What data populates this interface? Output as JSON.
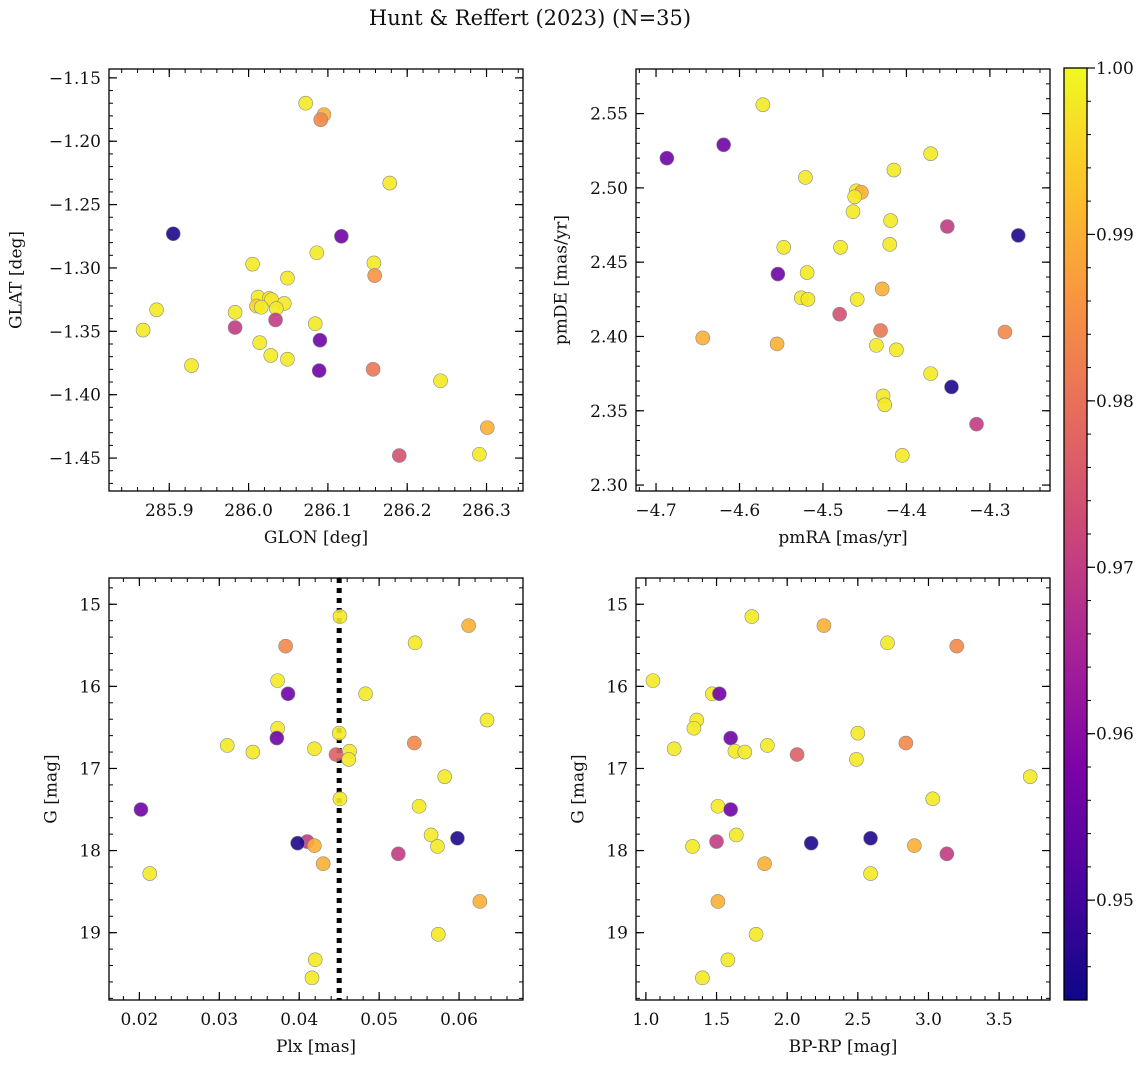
{
  "figure": {
    "title": "Hunt & Reffert (2023) (N=35)"
  },
  "colorbar": {
    "cmap": "plasma",
    "vmin": 0.944,
    "vmax": 1.0,
    "ticks": [
      0.95,
      0.96,
      0.97,
      0.98,
      0.99,
      1.0
    ],
    "tick_labels": [
      "0.95",
      "0.96",
      "0.97",
      "0.98",
      "0.99",
      "1.00"
    ]
  },
  "chart_data": [
    {
      "type": "scatter",
      "id": "glon-glat",
      "xlabel": "GLON [deg]",
      "ylabel": "GLAT [deg]",
      "xlim": [
        285.824,
        286.346
      ],
      "ylim": [
        -1.476,
        -1.143
      ],
      "y_inverted": false,
      "xticks": [
        285.9,
        286.0,
        286.1,
        286.2,
        286.3
      ],
      "xtick_labels": [
        "285.9",
        "286.0",
        "286.1",
        "286.2",
        "286.3"
      ],
      "yticks": [
        -1.45,
        -1.4,
        -1.35,
        -1.3,
        -1.25,
        -1.2,
        -1.15
      ],
      "ytick_labels": [
        "−1.45",
        "−1.40",
        "−1.35",
        "−1.30",
        "−1.25",
        "−1.20",
        "−1.15"
      ],
      "points": [
        {
          "x": 286.072,
          "y": -1.17,
          "c": 0.998
        },
        {
          "x": 286.095,
          "y": -1.179,
          "c": 0.99
        },
        {
          "x": 286.091,
          "y": -1.183,
          "c": 0.984
        },
        {
          "x": 286.178,
          "y": -1.233,
          "c": 0.998
        },
        {
          "x": 285.905,
          "y": -1.273,
          "c": 0.946
        },
        {
          "x": 286.117,
          "y": -1.275,
          "c": 0.956
        },
        {
          "x": 286.086,
          "y": -1.288,
          "c": 0.998
        },
        {
          "x": 286.005,
          "y": -1.297,
          "c": 0.998
        },
        {
          "x": 286.158,
          "y": -1.296,
          "c": 0.998
        },
        {
          "x": 286.049,
          "y": -1.308,
          "c": 0.998
        },
        {
          "x": 286.159,
          "y": -1.306,
          "c": 0.986
        },
        {
          "x": 286.012,
          "y": -1.323,
          "c": 0.998
        },
        {
          "x": 286.026,
          "y": -1.324,
          "c": 0.997
        },
        {
          "x": 286.029,
          "y": -1.325,
          "c": 0.998
        },
        {
          "x": 286.045,
          "y": -1.328,
          "c": 0.998
        },
        {
          "x": 286.01,
          "y": -1.33,
          "c": 0.995
        },
        {
          "x": 286.016,
          "y": -1.331,
          "c": 0.998
        },
        {
          "x": 286.035,
          "y": -1.332,
          "c": 0.998
        },
        {
          "x": 285.884,
          "y": -1.333,
          "c": 0.998
        },
        {
          "x": 285.983,
          "y": -1.335,
          "c": 0.998
        },
        {
          "x": 286.034,
          "y": -1.341,
          "c": 0.97
        },
        {
          "x": 286.084,
          "y": -1.344,
          "c": 0.998
        },
        {
          "x": 285.983,
          "y": -1.347,
          "c": 0.97
        },
        {
          "x": 285.867,
          "y": -1.349,
          "c": 0.998
        },
        {
          "x": 286.09,
          "y": -1.357,
          "c": 0.956
        },
        {
          "x": 286.014,
          "y": -1.359,
          "c": 0.998
        },
        {
          "x": 286.028,
          "y": -1.369,
          "c": 0.998
        },
        {
          "x": 286.049,
          "y": -1.372,
          "c": 0.998
        },
        {
          "x": 285.928,
          "y": -1.377,
          "c": 0.998
        },
        {
          "x": 286.157,
          "y": -1.38,
          "c": 0.981
        },
        {
          "x": 286.089,
          "y": -1.381,
          "c": 0.956
        },
        {
          "x": 286.242,
          "y": -1.389,
          "c": 0.998
        },
        {
          "x": 286.301,
          "y": -1.426,
          "c": 0.99
        },
        {
          "x": 286.19,
          "y": -1.448,
          "c": 0.974
        },
        {
          "x": 286.291,
          "y": -1.447,
          "c": 0.998
        }
      ]
    },
    {
      "type": "scatter",
      "id": "pmra-pmde",
      "xlabel": "pmRA [mas/yr]",
      "ylabel": "pmDE [mas/yr]",
      "xlim": [
        -4.724,
        -4.228
      ],
      "ylim": [
        2.296,
        2.58
      ],
      "y_inverted": false,
      "xticks": [
        -4.7,
        -4.6,
        -4.5,
        -4.4,
        -4.3
      ],
      "xtick_labels": [
        "−4.7",
        "−4.6",
        "−4.5",
        "−4.4",
        "−4.3"
      ],
      "yticks": [
        2.3,
        2.35,
        2.4,
        2.45,
        2.5,
        2.55
      ],
      "ytick_labels": [
        "2.30",
        "2.35",
        "2.40",
        "2.45",
        "2.50",
        "2.55"
      ],
      "points": [
        {
          "x": -4.572,
          "y": 2.556,
          "c": 0.998
        },
        {
          "x": -4.687,
          "y": 2.52,
          "c": 0.956
        },
        {
          "x": -4.619,
          "y": 2.529,
          "c": 0.956
        },
        {
          "x": -4.371,
          "y": 2.523,
          "c": 0.998
        },
        {
          "x": -4.415,
          "y": 2.512,
          "c": 0.998
        },
        {
          "x": -4.521,
          "y": 2.507,
          "c": 0.998
        },
        {
          "x": -4.46,
          "y": 2.498,
          "c": 0.998
        },
        {
          "x": -4.454,
          "y": 2.497,
          "c": 0.99
        },
        {
          "x": -4.462,
          "y": 2.494,
          "c": 0.998
        },
        {
          "x": -4.464,
          "y": 2.484,
          "c": 0.998
        },
        {
          "x": -4.419,
          "y": 2.478,
          "c": 0.998
        },
        {
          "x": -4.351,
          "y": 2.474,
          "c": 0.97
        },
        {
          "x": -4.266,
          "y": 2.468,
          "c": 0.946
        },
        {
          "x": -4.42,
          "y": 2.462,
          "c": 0.998
        },
        {
          "x": -4.547,
          "y": 2.46,
          "c": 0.998
        },
        {
          "x": -4.479,
          "y": 2.46,
          "c": 0.998
        },
        {
          "x": -4.519,
          "y": 2.443,
          "c": 0.998
        },
        {
          "x": -4.554,
          "y": 2.442,
          "c": 0.956
        },
        {
          "x": -4.429,
          "y": 2.432,
          "c": 0.99
        },
        {
          "x": -4.526,
          "y": 2.426,
          "c": 0.998
        },
        {
          "x": -4.518,
          "y": 2.425,
          "c": 0.998
        },
        {
          "x": -4.459,
          "y": 2.425,
          "c": 0.998
        },
        {
          "x": -4.48,
          "y": 2.415,
          "c": 0.974
        },
        {
          "x": -4.431,
          "y": 2.404,
          "c": 0.981
        },
        {
          "x": -4.282,
          "y": 2.403,
          "c": 0.984
        },
        {
          "x": -4.644,
          "y": 2.399,
          "c": 0.99
        },
        {
          "x": -4.555,
          "y": 2.395,
          "c": 0.99
        },
        {
          "x": -4.436,
          "y": 2.394,
          "c": 0.998
        },
        {
          "x": -4.412,
          "y": 2.391,
          "c": 0.998
        },
        {
          "x": -4.371,
          "y": 2.375,
          "c": 0.998
        },
        {
          "x": -4.346,
          "y": 2.366,
          "c": 0.946
        },
        {
          "x": -4.428,
          "y": 2.36,
          "c": 0.998
        },
        {
          "x": -4.426,
          "y": 2.354,
          "c": 0.998
        },
        {
          "x": -4.316,
          "y": 2.341,
          "c": 0.97
        },
        {
          "x": -4.405,
          "y": 2.32,
          "c": 0.998
        }
      ]
    },
    {
      "type": "scatter",
      "id": "plx-g",
      "xlabel": "Plx [mas]",
      "ylabel": "G [mag]",
      "xlim": [
        0.0162,
        0.068
      ],
      "ylim": [
        19.82,
        14.68
      ],
      "y_inverted": true,
      "vline": {
        "x": 0.045,
        "style": "dotted"
      },
      "xticks": [
        0.02,
        0.03,
        0.04,
        0.05,
        0.06
      ],
      "xtick_labels": [
        "0.02",
        "0.03",
        "0.04",
        "0.05",
        "0.06"
      ],
      "yticks": [
        15,
        16,
        17,
        18,
        19
      ],
      "ytick_labels": [
        "15",
        "16",
        "17",
        "18",
        "19"
      ],
      "points": [
        {
          "x": 0.0451,
          "y": 15.15,
          "c": 0.998
        },
        {
          "x": 0.0612,
          "y": 15.26,
          "c": 0.99
        },
        {
          "x": 0.0545,
          "y": 15.47,
          "c": 0.998
        },
        {
          "x": 0.0383,
          "y": 15.51,
          "c": 0.984
        },
        {
          "x": 0.0373,
          "y": 15.93,
          "c": 0.998
        },
        {
          "x": 0.0386,
          "y": 16.09,
          "c": 0.956
        },
        {
          "x": 0.0483,
          "y": 16.09,
          "c": 0.998
        },
        {
          "x": 0.0635,
          "y": 16.41,
          "c": 0.998
        },
        {
          "x": 0.0373,
          "y": 16.51,
          "c": 0.998
        },
        {
          "x": 0.045,
          "y": 16.57,
          "c": 0.998
        },
        {
          "x": 0.0372,
          "y": 16.63,
          "c": 0.956
        },
        {
          "x": 0.0544,
          "y": 16.69,
          "c": 0.984
        },
        {
          "x": 0.031,
          "y": 16.72,
          "c": 0.998
        },
        {
          "x": 0.0419,
          "y": 16.76,
          "c": 0.998
        },
        {
          "x": 0.0342,
          "y": 16.8,
          "c": 0.998
        },
        {
          "x": 0.0463,
          "y": 16.79,
          "c": 0.998
        },
        {
          "x": 0.0446,
          "y": 16.83,
          "c": 0.977
        },
        {
          "x": 0.0462,
          "y": 16.89,
          "c": 0.998
        },
        {
          "x": 0.0582,
          "y": 17.1,
          "c": 0.998
        },
        {
          "x": 0.0451,
          "y": 17.37,
          "c": 0.998
        },
        {
          "x": 0.055,
          "y": 17.46,
          "c": 0.998
        },
        {
          "x": 0.0202,
          "y": 17.5,
          "c": 0.956
        },
        {
          "x": 0.0565,
          "y": 17.81,
          "c": 0.998
        },
        {
          "x": 0.0598,
          "y": 17.85,
          "c": 0.946
        },
        {
          "x": 0.041,
          "y": 17.89,
          "c": 0.97
        },
        {
          "x": 0.0398,
          "y": 17.91,
          "c": 0.946
        },
        {
          "x": 0.0419,
          "y": 17.94,
          "c": 0.99
        },
        {
          "x": 0.0573,
          "y": 17.95,
          "c": 0.998
        },
        {
          "x": 0.0524,
          "y": 18.04,
          "c": 0.97
        },
        {
          "x": 0.043,
          "y": 18.16,
          "c": 0.99
        },
        {
          "x": 0.0213,
          "y": 18.28,
          "c": 0.998
        },
        {
          "x": 0.0626,
          "y": 18.62,
          "c": 0.99
        },
        {
          "x": 0.0574,
          "y": 19.02,
          "c": 0.998
        },
        {
          "x": 0.042,
          "y": 19.33,
          "c": 0.998
        },
        {
          "x": 0.0416,
          "y": 19.55,
          "c": 0.998
        }
      ]
    },
    {
      "type": "scatter",
      "id": "bprp-g",
      "xlabel": "BP-RP [mag]",
      "ylabel": "G [mag]",
      "xlim": [
        0.93,
        3.86
      ],
      "ylim": [
        19.82,
        14.68
      ],
      "y_inverted": true,
      "xticks": [
        1.0,
        1.5,
        2.0,
        2.5,
        3.0,
        3.5
      ],
      "xtick_labels": [
        "1.0",
        "1.5",
        "2.0",
        "2.5",
        "3.0",
        "3.5"
      ],
      "yticks": [
        15,
        16,
        17,
        18,
        19
      ],
      "ytick_labels": [
        "15",
        "16",
        "17",
        "18",
        "19"
      ],
      "points": [
        {
          "x": 1.75,
          "y": 15.15,
          "c": 0.998
        },
        {
          "x": 2.26,
          "y": 15.26,
          "c": 0.99
        },
        {
          "x": 2.71,
          "y": 15.47,
          "c": 0.998
        },
        {
          "x": 3.2,
          "y": 15.51,
          "c": 0.984
        },
        {
          "x": 1.05,
          "y": 15.93,
          "c": 0.998
        },
        {
          "x": 1.47,
          "y": 16.09,
          "c": 0.998
        },
        {
          "x": 1.52,
          "y": 16.09,
          "c": 0.956
        },
        {
          "x": 1.36,
          "y": 16.41,
          "c": 0.998
        },
        {
          "x": 1.34,
          "y": 16.51,
          "c": 0.998
        },
        {
          "x": 2.5,
          "y": 16.57,
          "c": 0.998
        },
        {
          "x": 1.6,
          "y": 16.63,
          "c": 0.956
        },
        {
          "x": 2.84,
          "y": 16.69,
          "c": 0.984
        },
        {
          "x": 1.86,
          "y": 16.72,
          "c": 0.998
        },
        {
          "x": 1.2,
          "y": 16.76,
          "c": 0.998
        },
        {
          "x": 1.63,
          "y": 16.79,
          "c": 0.998
        },
        {
          "x": 1.7,
          "y": 16.8,
          "c": 0.998
        },
        {
          "x": 2.07,
          "y": 16.83,
          "c": 0.977
        },
        {
          "x": 2.49,
          "y": 16.89,
          "c": 0.998
        },
        {
          "x": 3.72,
          "y": 17.1,
          "c": 0.998
        },
        {
          "x": 3.03,
          "y": 17.37,
          "c": 0.998
        },
        {
          "x": 1.51,
          "y": 17.46,
          "c": 0.998
        },
        {
          "x": 1.6,
          "y": 17.5,
          "c": 0.956
        },
        {
          "x": 1.64,
          "y": 17.81,
          "c": 0.998
        },
        {
          "x": 2.59,
          "y": 17.85,
          "c": 0.946
        },
        {
          "x": 1.5,
          "y": 17.89,
          "c": 0.97
        },
        {
          "x": 2.17,
          "y": 17.91,
          "c": 0.946
        },
        {
          "x": 2.9,
          "y": 17.94,
          "c": 0.99
        },
        {
          "x": 1.33,
          "y": 17.95,
          "c": 0.998
        },
        {
          "x": 3.13,
          "y": 18.04,
          "c": 0.97
        },
        {
          "x": 1.84,
          "y": 18.16,
          "c": 0.99
        },
        {
          "x": 2.59,
          "y": 18.28,
          "c": 0.998
        },
        {
          "x": 1.51,
          "y": 18.62,
          "c": 0.99
        },
        {
          "x": 1.78,
          "y": 19.02,
          "c": 0.998
        },
        {
          "x": 1.58,
          "y": 19.33,
          "c": 0.998
        },
        {
          "x": 1.4,
          "y": 19.55,
          "c": 0.998
        }
      ]
    }
  ]
}
